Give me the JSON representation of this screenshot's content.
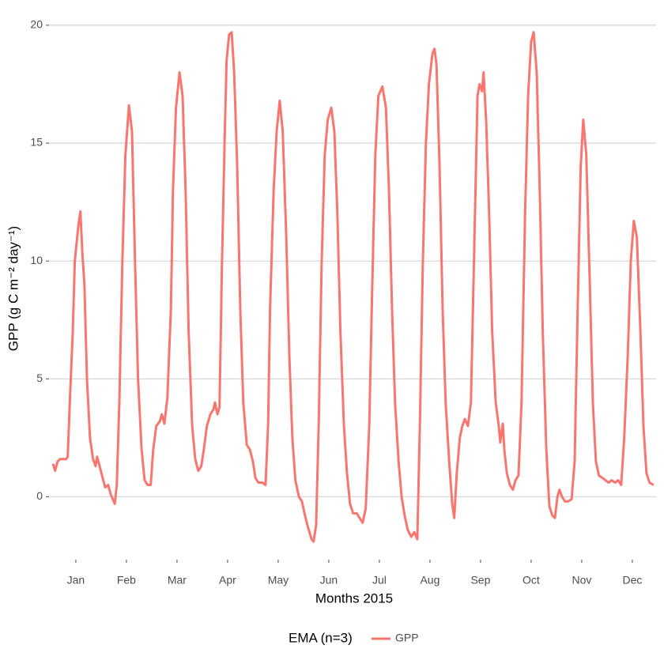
{
  "chart_data": {
    "type": "line",
    "x_label": "Months 2015",
    "y_label": "GPP (g C m⁻² day⁻¹)",
    "legend_title": "EMA (n=3)",
    "legend_position": "bottom",
    "grid": true,
    "xlim": [
      0.47,
      12.47
    ],
    "xticks": [
      {
        "value": 1,
        "label": "Jan"
      },
      {
        "value": 2,
        "label": "Feb"
      },
      {
        "value": 3,
        "label": "Mar"
      },
      {
        "value": 4,
        "label": "Apr"
      },
      {
        "value": 5,
        "label": "May"
      },
      {
        "value": 6,
        "label": "Jun"
      },
      {
        "value": 7,
        "label": "Jul"
      },
      {
        "value": 8,
        "label": "Aug"
      },
      {
        "value": 9,
        "label": "Sep"
      },
      {
        "value": 10,
        "label": "Oct"
      },
      {
        "value": 11,
        "label": "Nov"
      },
      {
        "value": 12,
        "label": "Dec"
      }
    ],
    "ylim": [
      -2.6,
      20.6
    ],
    "yticks": [
      0,
      5,
      10,
      15,
      20
    ],
    "x": [
      0.55,
      0.59,
      0.64,
      0.69,
      0.75,
      0.81,
      0.84,
      0.89,
      0.94,
      0.98,
      1.05,
      1.09,
      1.13,
      1.17,
      1.22,
      1.28,
      1.34,
      1.39,
      1.42,
      1.47,
      1.53,
      1.58,
      1.64,
      1.69,
      1.77,
      1.81,
      1.86,
      1.92,
      1.98,
      2.05,
      2.11,
      2.17,
      2.23,
      2.3,
      2.36,
      2.42,
      2.48,
      2.53,
      2.59,
      2.66,
      2.7,
      2.75,
      2.81,
      2.88,
      2.92,
      2.98,
      3.05,
      3.11,
      3.17,
      3.23,
      3.3,
      3.36,
      3.42,
      3.48,
      3.53,
      3.59,
      3.66,
      3.72,
      3.75,
      3.8,
      3.84,
      3.89,
      3.94,
      3.98,
      4.03,
      4.08,
      4.13,
      4.19,
      4.25,
      4.31,
      4.38,
      4.44,
      4.5,
      4.55,
      4.61,
      4.69,
      4.75,
      4.8,
      4.84,
      4.91,
      4.97,
      5.03,
      5.09,
      5.16,
      5.22,
      5.28,
      5.34,
      5.41,
      5.47,
      5.53,
      5.59,
      5.66,
      5.7,
      5.75,
      5.8,
      5.86,
      5.92,
      5.98,
      6.05,
      6.11,
      6.17,
      6.23,
      6.3,
      6.36,
      6.42,
      6.48,
      6.55,
      6.61,
      6.67,
      6.73,
      6.8,
      6.86,
      6.92,
      6.98,
      7.06,
      7.13,
      7.19,
      7.25,
      7.31,
      7.38,
      7.44,
      7.5,
      7.56,
      7.63,
      7.69,
      7.75,
      7.8,
      7.86,
      7.92,
      7.98,
      8.05,
      8.09,
      8.13,
      8.19,
      8.25,
      8.31,
      8.38,
      8.44,
      8.48,
      8.53,
      8.59,
      8.64,
      8.69,
      8.75,
      8.81,
      8.88,
      8.94,
      8.98,
      9.03,
      9.06,
      9.11,
      9.17,
      9.23,
      9.3,
      9.36,
      9.39,
      9.44,
      9.47,
      9.52,
      9.58,
      9.64,
      9.69,
      9.75,
      9.81,
      9.88,
      9.94,
      10.0,
      10.05,
      10.11,
      10.17,
      10.23,
      10.3,
      10.36,
      10.42,
      10.47,
      10.52,
      10.56,
      10.61,
      10.67,
      10.73,
      10.8,
      10.86,
      10.92,
      10.98,
      11.03,
      11.09,
      11.16,
      11.22,
      11.28,
      11.34,
      11.41,
      11.47,
      11.53,
      11.59,
      11.66,
      11.72,
      11.78,
      11.84,
      11.91,
      11.97,
      12.03,
      12.09,
      12.16,
      12.22,
      12.28,
      12.34,
      12.42
    ],
    "series": [
      {
        "name": "GPP",
        "color": "#F8766D",
        "values": [
          1.4,
          1.1,
          1.5,
          1.6,
          1.6,
          1.6,
          1.7,
          4.5,
          7,
          10,
          11.5,
          12.1,
          10.3,
          9,
          5,
          2.5,
          1.6,
          1.3,
          1.7,
          1.3,
          0.8,
          0.4,
          0.5,
          0.1,
          -0.3,
          0.5,
          4,
          10,
          14.5,
          16.6,
          15.5,
          10,
          5,
          2,
          0.7,
          0.5,
          0.5,
          2,
          3,
          3.2,
          3.5,
          3.1,
          4.2,
          8,
          13,
          16.5,
          18,
          17,
          13,
          7,
          3,
          1.6,
          1.1,
          1.3,
          2,
          3,
          3.5,
          3.7,
          4,
          3.5,
          3.8,
          10,
          15,
          18.5,
          19.6,
          19.7,
          18,
          14,
          8,
          4,
          2.2,
          2,
          1.5,
          0.8,
          0.6,
          0.6,
          0.5,
          3,
          8,
          13,
          15.5,
          16.8,
          15.5,
          11,
          6,
          2.5,
          0.7,
          0,
          -0.2,
          -0.8,
          -1.3,
          -1.8,
          -1.9,
          -1.2,
          3,
          10,
          14.5,
          16,
          16.5,
          15.5,
          12,
          7,
          3,
          1,
          -0.3,
          -0.7,
          -0.7,
          -0.9,
          -1.1,
          -0.5,
          3,
          9,
          14.5,
          17,
          17.4,
          16.5,
          13,
          8,
          4,
          1.5,
          0,
          -0.8,
          -1.4,
          -1.7,
          -1.5,
          -1.8,
          3,
          10,
          15,
          17.5,
          18.8,
          19,
          18.3,
          14,
          8,
          4,
          1.5,
          -0.3,
          -0.9,
          1,
          2.5,
          3,
          3.3,
          3,
          4,
          11,
          17,
          17.5,
          17.2,
          18,
          16,
          12,
          7,
          4,
          3,
          2.3,
          3.1,
          2,
          1,
          0.5,
          0.3,
          0.7,
          0.9,
          4,
          12,
          17,
          19.3,
          19.7,
          18,
          13,
          7,
          2,
          -0.4,
          -0.8,
          -0.9,
          0,
          0.3,
          0,
          -0.2,
          -0.2,
          -0.1,
          1.5,
          8,
          14,
          16,
          14.5,
          9,
          4,
          1.5,
          0.9,
          0.8,
          0.7,
          0.6,
          0.7,
          0.6,
          0.7,
          0.5,
          2.5,
          6,
          10,
          11.7,
          11,
          7,
          3,
          1,
          0.6,
          0.5
        ]
      }
    ]
  }
}
